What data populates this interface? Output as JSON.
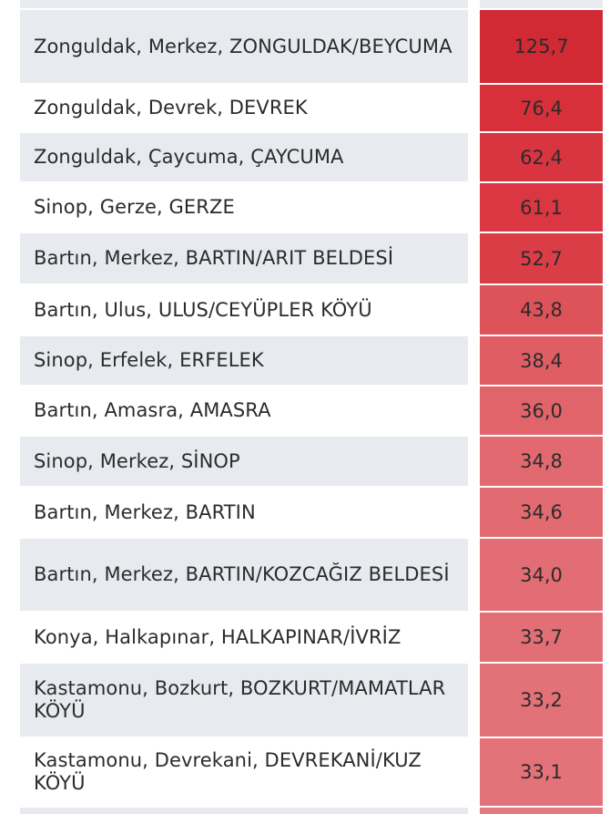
{
  "table": {
    "rows": [
      {
        "location": "Zonguldak, Merkez, ZONGULDAK/BEYCUMA",
        "value": "125,7",
        "color": "#d12a35"
      },
      {
        "location": "Zonguldak, Devrek, DEVREK",
        "value": "76,4",
        "color": "#d8303b"
      },
      {
        "location": "Zonguldak, Çaycuma, ÇAYCUMA",
        "value": "62,4",
        "color": "#d93540"
      },
      {
        "location": "Sinop, Gerze, GERZE",
        "value": "61,1",
        "color": "#da3742"
      },
      {
        "location": "Bartın, Merkez, BARTIN/ARIT BELDESİ",
        "value": "52,7",
        "color": "#db3d47"
      },
      {
        "location": "Bartın, Ulus, ULUS/CEYÜPLER KÖYÜ",
        "value": "43,8",
        "color": "#de535a"
      },
      {
        "location": "Sinop, Erfelek, ERFELEK",
        "value": "38,4",
        "color": "#e05d64"
      },
      {
        "location": "Bartın, Amasra, AMASRA",
        "value": "36,0",
        "color": "#e1646b"
      },
      {
        "location": "Sinop, Merkez, SİNOP",
        "value": "34,8",
        "color": "#e26970"
      },
      {
        "location": "Bartın, Merkez, BARTIN",
        "value": "34,6",
        "color": "#e26a71"
      },
      {
        "location": "Bartın, Merkez, BARTIN/KOZCAĞIZ BELDESİ",
        "value": "34,0",
        "color": "#e36d74"
      },
      {
        "location": "Konya, Halkapınar, HALKAPINAR/İVRİZ",
        "value": "33,7",
        "color": "#e36f76"
      },
      {
        "location": "Kastamonu, Bozkurt, BOZKURT/MAMATLAR KÖYÜ",
        "value": "33,2",
        "color": "#e37178"
      },
      {
        "location": "Kastamonu, Devrekani, DEVREKANİ/KUZ KÖYÜ",
        "value": "33,1",
        "color": "#e37279"
      }
    ]
  }
}
